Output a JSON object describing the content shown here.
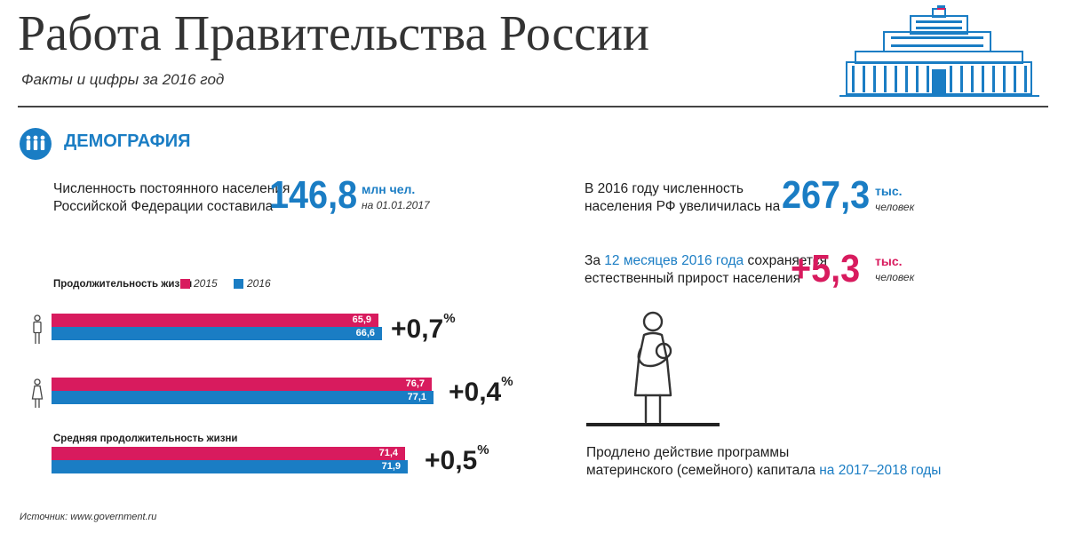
{
  "header": {
    "title": "Работа Правительства России",
    "subtitle": "Факты и цифры за 2016 год"
  },
  "section": {
    "title": "ДЕМОГРАФИЯ"
  },
  "population": {
    "label_line1": "Численность постоянного населения",
    "label_line2": "Российской Федерации составила",
    "value": "146,8",
    "unit": "млн чел.",
    "date": "на 01.01.2017"
  },
  "growth": {
    "label_line1": "В 2016 году численность",
    "label_line2": "населения РФ увеличилась на",
    "value": "267,3",
    "unit": "тыс.",
    "unit_sub": "человек"
  },
  "natural": {
    "label_prefix": "За ",
    "label_highlight": "12 месяцев 2016 года",
    "label_suffix": " сохраняется",
    "label_line2": "естественный прирост населения",
    "value": "+5,3",
    "unit": "тыс.",
    "unit_sub": "человек"
  },
  "maternity": {
    "line1": "Продлено действие программы",
    "line2_prefix": "материнского (семейного) капитала ",
    "line2_highlight": "на 2017–2018 годы"
  },
  "source": "Источник: www.government.ru",
  "colors": {
    "y2015": "#d81b5e",
    "y2016": "#1a7dc4",
    "accent": "#1a7dc4"
  },
  "chart_data": {
    "type": "bar",
    "orientation": "horizontal",
    "title": "Продолжительность жизни",
    "legend": [
      "2015",
      "2016"
    ],
    "categories": [
      "мужчины",
      "женщины",
      "Средняя продолжительность жизни"
    ],
    "series": [
      {
        "name": "2015",
        "values": [
          65.9,
          76.7,
          71.4
        ],
        "labels": [
          "65,9",
          "76,7",
          "71,4"
        ]
      },
      {
        "name": "2016",
        "values": [
          66.6,
          77.1,
          71.9
        ],
        "labels": [
          "66,6",
          "77,1",
          "71,9"
        ]
      }
    ],
    "deltas": [
      "+0,7",
      "+0,4",
      "+0,5"
    ],
    "delta_unit": "%",
    "xlim": [
      0,
      80
    ]
  }
}
